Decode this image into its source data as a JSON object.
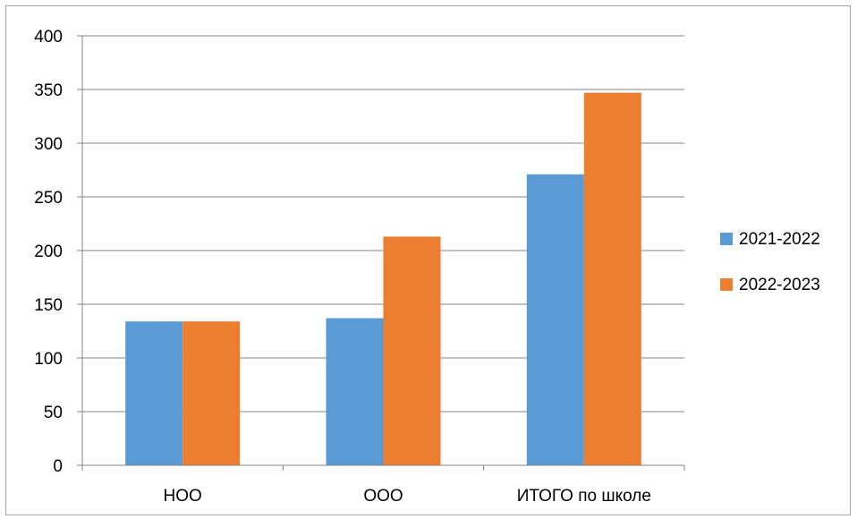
{
  "chart_data": {
    "type": "bar",
    "categories": [
      "НОО",
      "ООО",
      "ИТОГО по школе"
    ],
    "series": [
      {
        "name": "2021-2022",
        "values": [
          134,
          137,
          271
        ],
        "color": "#5b9bd5"
      },
      {
        "name": "2022-2023",
        "values": [
          134,
          213,
          347
        ],
        "color": "#ed7d31"
      }
    ],
    "ylim": [
      0,
      400
    ],
    "yticks": [
      0,
      50,
      100,
      150,
      200,
      250,
      300,
      350,
      400
    ],
    "grid": true,
    "legend_position": "right",
    "title": "",
    "xlabel": "",
    "ylabel": ""
  }
}
